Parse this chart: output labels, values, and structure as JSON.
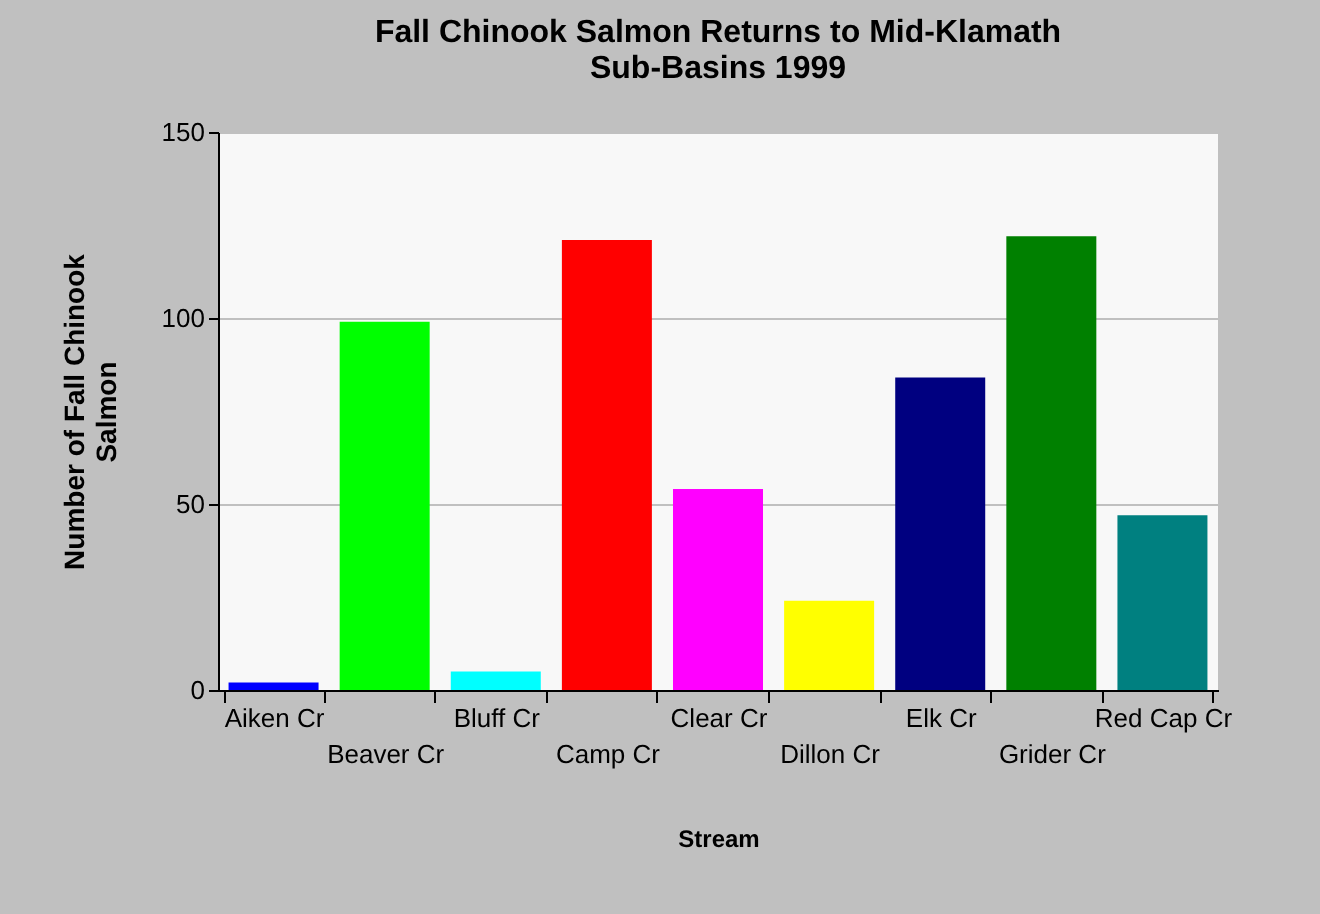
{
  "chart_data": {
    "type": "bar",
    "title": "Fall Chinook Salmon Returns to Mid-Klamath\nSub-Basins 1999",
    "xlabel": "Stream",
    "ylabel": "Number of Fall Chinook\nSalmon",
    "categories": [
      "Aiken Cr",
      "Beaver Cr",
      "Bluff Cr",
      "Camp Cr",
      "Clear Cr",
      "Dillon Cr",
      "Elk Cr",
      "Grider Cr",
      "Red Cap Cr"
    ],
    "values": [
      2,
      99,
      5,
      121,
      54,
      24,
      84,
      122,
      47
    ],
    "colors": [
      "#0000ff",
      "#00ff00",
      "#00ffff",
      "#ff0000",
      "#ff00ff",
      "#ffff00",
      "#000080",
      "#008000",
      "#008080"
    ],
    "ylim": [
      0,
      150
    ],
    "yticks": [
      0,
      50,
      100,
      150
    ],
    "grid": "y"
  }
}
